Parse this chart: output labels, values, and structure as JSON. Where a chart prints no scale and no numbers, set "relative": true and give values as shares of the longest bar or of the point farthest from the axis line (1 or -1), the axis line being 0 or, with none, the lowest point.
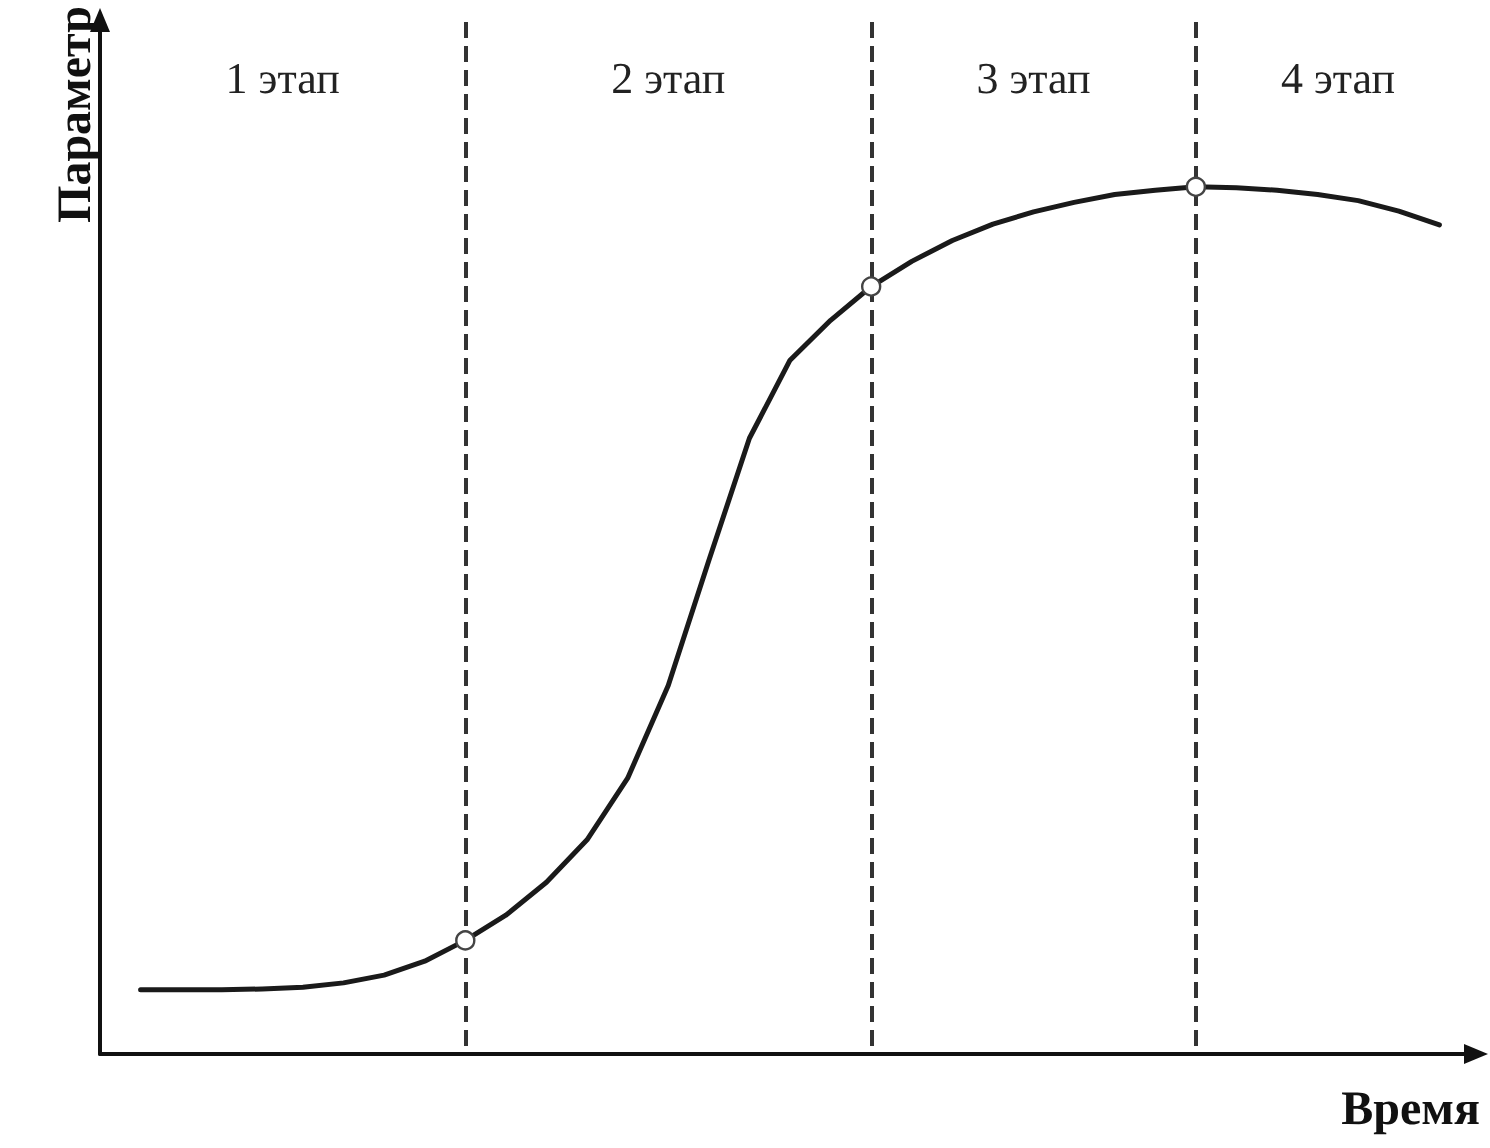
{
  "chart_data": {
    "type": "line",
    "relative": true,
    "xlabel": "Время",
    "ylabel": "Параметр",
    "tick_labels": false,
    "grid": "x",
    "marker": "none",
    "line_style": "solid",
    "annotations": [
      "1 этап",
      "2 этап",
      "3 этап",
      "4 этап"
    ],
    "categories": [
      null,
      null,
      null,
      null,
      null,
      null,
      null,
      null,
      null,
      null,
      null,
      null,
      null,
      null,
      null,
      null,
      null,
      null,
      null,
      null,
      null,
      null,
      null,
      null,
      null,
      null,
      null,
      null,
      null,
      null,
      null,
      null,
      null,
      null,
      null
    ],
    "series": [
      {
        "color": "#1a1a1a",
        "values": [
          null,
          0.074,
          0.074,
          0.074,
          0.075,
          0.077,
          0.082,
          0.091,
          0.107,
          0.131,
          0.16,
          0.198,
          0.247,
          0.318,
          0.425,
          0.569,
          0.71,
          0.8,
          0.846,
          0.885,
          0.914,
          0.938,
          0.957,
          0.971,
          0.982,
          0.991,
          0.996,
          1.0,
          0.999,
          0.996,
          0.991,
          0.984,
          0.972,
          0.956,
          null
        ]
      }
    ]
  }
}
